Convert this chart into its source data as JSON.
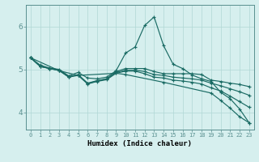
{
  "title": "",
  "xlabel": "Humidex (Indice chaleur)",
  "background_color": "#d6efee",
  "plot_bg_color": "#d6efee",
  "line_color": "#1a6b64",
  "grid_color": "#b0d8d5",
  "axis_color": "#5a9090",
  "x_ticks": [
    0,
    1,
    2,
    3,
    4,
    5,
    6,
    7,
    8,
    9,
    10,
    11,
    12,
    13,
    14,
    15,
    16,
    17,
    18,
    19,
    20,
    21,
    22,
    23
  ],
  "ylim": [
    3.6,
    6.5
  ],
  "yticks": [
    4,
    5,
    6
  ],
  "lines": [
    {
      "x": [
        0,
        1,
        2,
        3,
        4,
        5,
        6,
        7,
        8,
        9,
        10,
        11,
        12,
        13,
        14,
        15,
        16,
        17,
        18,
        19,
        20,
        21,
        22,
        23
      ],
      "y": [
        5.27,
        5.1,
        5.03,
        5.0,
        4.85,
        4.93,
        4.8,
        4.78,
        4.82,
        4.97,
        5.38,
        5.52,
        6.02,
        6.22,
        5.55,
        5.12,
        5.02,
        4.87,
        4.78,
        4.72,
        4.47,
        4.32,
        4.08,
        3.76
      ]
    },
    {
      "x": [
        0,
        1,
        2,
        3,
        4,
        5,
        6,
        7,
        8,
        9,
        10,
        11,
        12,
        13,
        14,
        15,
        16,
        17,
        18,
        19,
        20,
        21,
        22,
        23
      ],
      "y": [
        5.27,
        5.07,
        5.02,
        4.98,
        4.83,
        4.88,
        4.68,
        4.74,
        4.78,
        4.95,
        5.02,
        5.02,
        5.02,
        4.95,
        4.9,
        4.9,
        4.9,
        4.9,
        4.88,
        4.75,
        4.72,
        4.68,
        4.65,
        4.6
      ]
    },
    {
      "x": [
        0,
        1,
        2,
        3,
        4,
        5,
        6,
        7,
        8,
        9,
        10,
        11,
        12,
        13,
        14,
        15,
        16,
        17,
        18,
        19,
        20,
        21,
        22,
        23
      ],
      "y": [
        5.27,
        5.07,
        5.02,
        4.98,
        4.83,
        4.87,
        4.67,
        4.73,
        4.78,
        4.93,
        4.98,
        4.98,
        4.95,
        4.88,
        4.86,
        4.82,
        4.8,
        4.78,
        4.75,
        4.68,
        4.62,
        4.55,
        4.48,
        4.4
      ]
    },
    {
      "x": [
        0,
        1,
        2,
        3,
        4,
        5,
        6,
        7,
        8,
        9,
        10,
        11,
        12,
        13,
        14,
        15,
        16,
        17,
        18,
        19,
        20,
        21,
        22,
        23
      ],
      "y": [
        5.27,
        5.07,
        5.02,
        4.97,
        4.82,
        4.86,
        4.66,
        4.72,
        4.76,
        4.91,
        4.96,
        4.96,
        4.9,
        4.82,
        4.8,
        4.75,
        4.73,
        4.7,
        4.66,
        4.57,
        4.5,
        4.38,
        4.25,
        4.12
      ]
    },
    {
      "x": [
        0,
        3,
        5,
        9,
        10,
        14,
        19,
        20,
        21,
        22,
        23
      ],
      "y": [
        5.27,
        4.97,
        4.86,
        4.91,
        4.88,
        4.7,
        4.45,
        4.28,
        4.1,
        3.9,
        3.76
      ]
    }
  ],
  "figsize": [
    3.2,
    2.0
  ],
  "dpi": 100
}
